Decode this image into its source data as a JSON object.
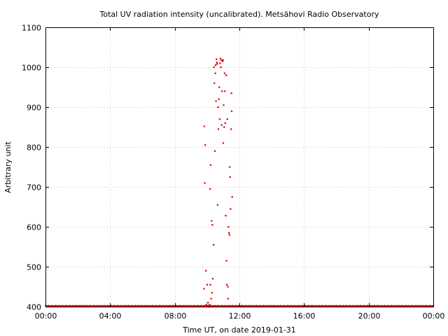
{
  "chart_data": {
    "type": "scatter",
    "title": "Total UV radiation intensity (uncalibrated). Metsähovi Radio Observatory",
    "xlabel": "Time UT, on date 2019-01-31",
    "ylabel": "Arbitrary unit",
    "x_unit": "hours UT",
    "xlim": [
      0,
      24
    ],
    "ylim": [
      400,
      1100
    ],
    "x_tick_labels": [
      "00:00",
      "04:00",
      "08:00",
      "12:00",
      "16:00",
      "20:00",
      "00:00"
    ],
    "y_tick_labels": [
      "400",
      "500",
      "600",
      "700",
      "800",
      "900",
      "1000",
      "1100"
    ],
    "grid": true,
    "point_color": "#e00000",
    "baseline": {
      "x_range": [
        0,
        24
      ],
      "y": 401
    },
    "series": [
      {
        "x": [
          9.8,
          9.82,
          9.85,
          9.88,
          9.92,
          9.95,
          10.0,
          10.05,
          10.1,
          10.15,
          10.18,
          10.2,
          10.22,
          10.25,
          10.28,
          10.3,
          10.32,
          10.35,
          10.4,
          10.42,
          10.45,
          10.48,
          10.5,
          10.52,
          10.55,
          10.58,
          10.6,
          10.62,
          10.65,
          10.68,
          10.7,
          10.72,
          10.75,
          10.78,
          10.8,
          10.82,
          10.85,
          10.88,
          10.9,
          10.92,
          10.95,
          10.98,
          11.0,
          11.02,
          11.05,
          11.08,
          11.1,
          11.12,
          11.15,
          11.18,
          11.2,
          11.22,
          11.25,
          11.28,
          11.3,
          11.32,
          11.35,
          11.38,
          11.4,
          11.42,
          11.45,
          11.48,
          11.5,
          11.52,
          11.55
        ],
        "y": [
          445,
          852,
          710,
          805,
          490,
          405,
          455,
          410,
          400,
          405,
          695,
          455,
          755,
          420,
          615,
          435,
          605,
          470,
          555,
          1000,
          960,
          790,
          985,
          1005,
          915,
          1020,
          1012,
          1008,
          655,
          900,
          845,
          920,
          950,
          870,
          1010,
          1022,
          1000,
          1018,
          855,
          940,
          1015,
          1018,
          810,
          905,
          850,
          985,
          940,
          860,
          628,
          980,
          515,
          455,
          870,
          450,
          420,
          600,
          585,
          580,
          750,
          725,
          645,
          845,
          935,
          890,
          675
        ]
      }
    ]
  }
}
